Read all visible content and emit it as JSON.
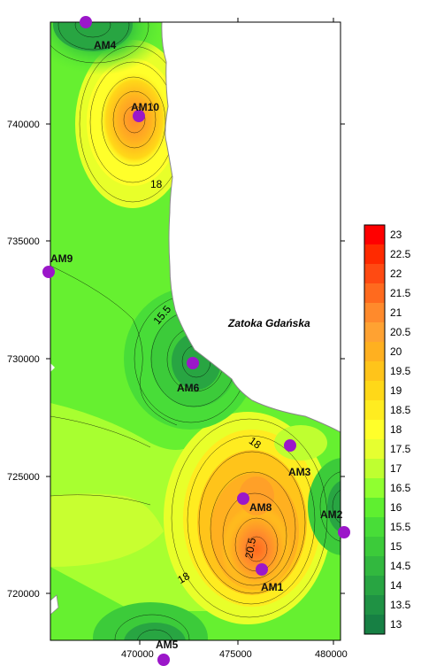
{
  "map": {
    "water_body": "Zatoka Gdańska",
    "y_ticks": [
      "740000",
      "735000",
      "730000",
      "725000",
      "720000"
    ],
    "x_ticks": [
      "470000",
      "475000",
      "480000"
    ],
    "contour_labels": [
      "18",
      "15.5",
      "18",
      "20.5",
      "18"
    ],
    "stations": [
      {
        "id": "AM4"
      },
      {
        "id": "AM10"
      },
      {
        "id": "AM9"
      },
      {
        "id": "AM6"
      },
      {
        "id": "AM3"
      },
      {
        "id": "AM8"
      },
      {
        "id": "AM2"
      },
      {
        "id": "AM1"
      },
      {
        "id": "AM5"
      }
    ],
    "station_color": "#9b17c9",
    "land_color": "#ffffff"
  },
  "legend": {
    "levels": [
      "23",
      "22.5",
      "22",
      "21.5",
      "21",
      "20.5",
      "20",
      "19.5",
      "19",
      "18.5",
      "18",
      "17.5",
      "17",
      "16.5",
      "16",
      "15.5",
      "15",
      "14.5",
      "14",
      "13.5",
      "13"
    ],
    "colors": [
      "#ff0000",
      "#ff2a00",
      "#ff4a12",
      "#ff6a1e",
      "#ff8a2c",
      "#ffa232",
      "#ffb020",
      "#ffc41a",
      "#ffd818",
      "#ffec20",
      "#ffff2a",
      "#e6ff30",
      "#bfff30",
      "#90ff30",
      "#5fef30",
      "#48dd38",
      "#3ccb3a",
      "#32b83f",
      "#28a542",
      "#1f9244",
      "#178044"
    ]
  }
}
